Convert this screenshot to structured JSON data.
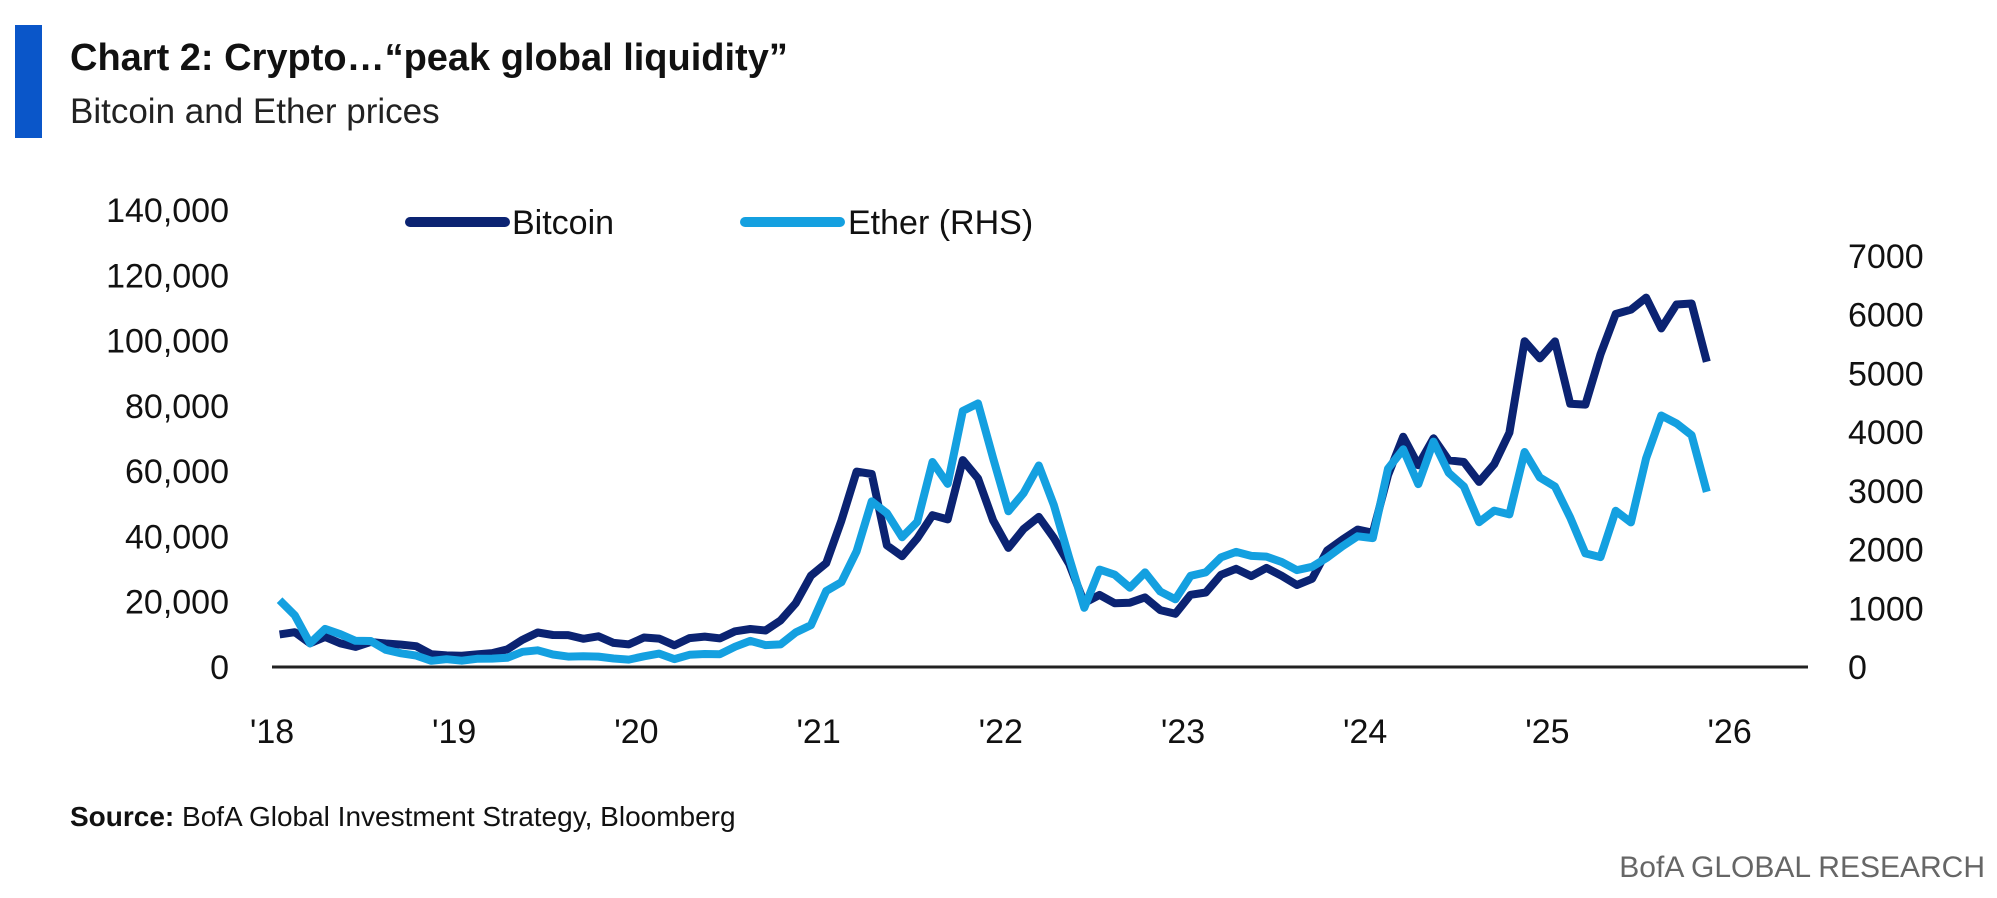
{
  "header": {
    "title": "Chart 2: Crypto…“peak global liquidity”",
    "subtitle": "Bitcoin and Ether prices",
    "accent_color": "#0a56c9"
  },
  "footer": {
    "source_label": "Source:",
    "source_text": " BofA Global Investment Strategy, Bloomberg",
    "brand": "BofA GLOBAL RESEARCH"
  },
  "chart_data": {
    "type": "line",
    "title": "Chart 2: Crypto…“peak global liquidity”",
    "subtitle": "Bitcoin and Ether prices",
    "x_ticks": [
      "'18",
      "'19",
      "'20",
      "'21",
      "'22",
      "'23",
      "'24",
      "'25",
      "'26"
    ],
    "x_start": 2018.0,
    "x_step_months": 1,
    "y_left": {
      "ticks": [
        "0",
        "20,000",
        "40,000",
        "60,000",
        "80,000",
        "100,000",
        "120,000",
        "140,000"
      ],
      "ylim": [
        0,
        140000
      ]
    },
    "y_right": {
      "ticks": [
        "0",
        "1000",
        "2000",
        "3000",
        "4000",
        "5000",
        "6000",
        "7000"
      ],
      "ylim": [
        0,
        7000
      ]
    },
    "legend_position": "top-left",
    "series": [
      {
        "name": "Bitcoin",
        "axis": "left",
        "color": "#0b2372",
        "values": [
          10000,
          10300,
          7000,
          9200,
          7500,
          6400,
          7700,
          7000,
          6600,
          6300,
          4000,
          3700,
          3500,
          3800,
          4100,
          5300,
          8500,
          11000,
          10000,
          9600,
          8300,
          9200,
          7500,
          7200,
          9300,
          8600,
          6400,
          8600,
          9400,
          9100,
          11300,
          11600,
          10800,
          13800,
          19600,
          29000,
          33000,
          45000,
          58000,
          57000,
          37000,
          35000,
          41000,
          47000,
          44000,
          61000,
          57000,
          46000,
          38000,
          43000,
          45000,
          38000,
          31000,
          20000,
          23000,
          20000,
          19400,
          20500,
          17000,
          16500,
          23000,
          23500,
          28000,
          29000,
          27000,
          30500,
          29000,
          26000,
          27000,
          34500,
          37700,
          42000,
          42500,
          61000,
          71000,
          60000,
          67500,
          62700,
          64600,
          59000,
          63000,
          70000,
          96000,
          93000,
          102000,
          84000,
          82000,
          94000,
          104000,
          107000,
          115000,
          108000,
          114000,
          110000,
          90000
        ]
      },
      {
        "name": "Ether (RHS)",
        "axis": "right",
        "color": "#14a0e0",
        "values": [
          1100,
          850,
          400,
          670,
          580,
          450,
          430,
          280,
          230,
          200,
          110,
          135,
          105,
          135,
          140,
          160,
          270,
          290,
          210,
          170,
          180,
          180,
          150,
          130,
          180,
          220,
          130,
          210,
          230,
          225,
          345,
          430,
          360,
          385,
          610,
          740,
          1300,
          1400,
          1900,
          2800,
          2700,
          2300,
          2500,
          3400,
          3000,
          4300,
          4600,
          3700,
          2700,
          2900,
          3300,
          2700,
          1900,
          1050,
          1700,
          1550,
          1300,
          1570,
          1300,
          1200,
          1600,
          1600,
          1800,
          1900,
          1900,
          1950,
          1850,
          1650,
          1650,
          1800,
          2050,
          2300,
          2280,
          3400,
          3600,
          3000,
          3800,
          3400,
          3200,
          2500,
          2600,
          2500,
          3600,
          3300,
          3200,
          2600,
          1900,
          1800,
          2600,
          2500,
          3700,
          4400,
          4100,
          3800,
          2900
        ]
      }
    ]
  }
}
